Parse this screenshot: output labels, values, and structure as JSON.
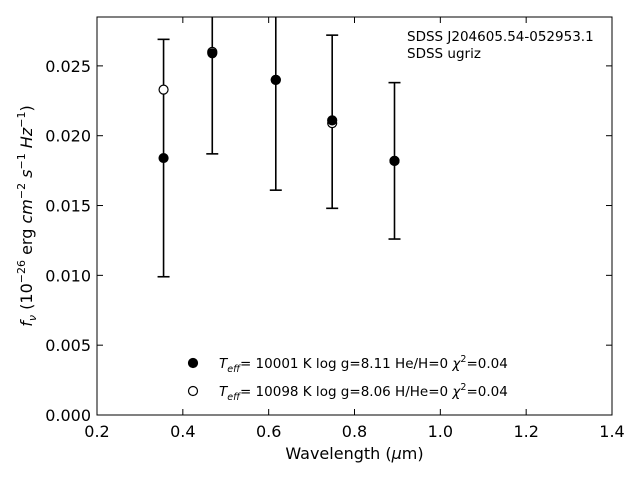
{
  "chart_data": {
    "type": "scatter",
    "xlabel": {
      "main": "Wavelength (",
      "mu": "μ",
      "rest": "m)"
    },
    "ylabel": {
      "f": "f",
      "nu": "ν",
      "rest": " (10",
      "exp1": "−26",
      "mid": " erg ",
      "cm": "cm",
      "exp2": "−2",
      "s": " s",
      "exp3": "−1",
      "hz": " Hz",
      "exp4": "−1",
      "close": ")"
    },
    "xlim": [
      0.2,
      1.4
    ],
    "ylim": [
      0.0,
      0.0285
    ],
    "x_ticks": [
      0.2,
      0.4,
      0.6,
      0.8,
      1.0,
      1.2,
      1.4
    ],
    "x_tick_labels": [
      "0.2",
      "0.4",
      "0.6",
      "0.8",
      "1.0",
      "1.2",
      "1.4"
    ],
    "y_ticks": [
      0.0,
      0.005,
      0.01,
      0.015,
      0.02,
      0.025
    ],
    "y_tick_labels": [
      "0.000",
      "0.005",
      "0.010",
      "0.015",
      "0.020",
      "0.025"
    ],
    "annotation": [
      "SDSS J204605.54-052953.1",
      "SDSS ugriz"
    ],
    "observed": {
      "x": [
        0.3551,
        0.4686,
        0.6166,
        0.748,
        0.8932
      ],
      "y": [
        0.0184,
        0.0259,
        0.024,
        0.021,
        0.0182
      ],
      "yerr": [
        0.0085,
        0.0072,
        0.0079,
        0.0062,
        0.0056
      ]
    },
    "series": [
      {
        "marker": "filled-circle",
        "label": {
          "T": "T",
          "sub": "eff",
          "body": "= 10001 K  log g=8.11  He/H=0  ",
          "chi": "χ",
          "sup": "2",
          "tail": "=0.04"
        },
        "x": [
          0.3551,
          0.4686,
          0.6166,
          0.748,
          0.8932
        ],
        "y": [
          0.0184,
          0.0259,
          0.024,
          0.0211,
          0.0182
        ]
      },
      {
        "marker": "open-circle",
        "label": {
          "T": "T",
          "sub": "eff",
          "body": "= 10098 K  log g=8.06  H/He=0  ",
          "chi": "χ",
          "sup": "2",
          "tail": "=0.04"
        },
        "x": [
          0.3551,
          0.4686,
          0.6166,
          0.748,
          0.8932
        ],
        "y": [
          0.0233,
          0.026,
          0.024,
          0.0209,
          0.0182
        ]
      }
    ],
    "legend_position": "lower-center",
    "grid": false
  }
}
